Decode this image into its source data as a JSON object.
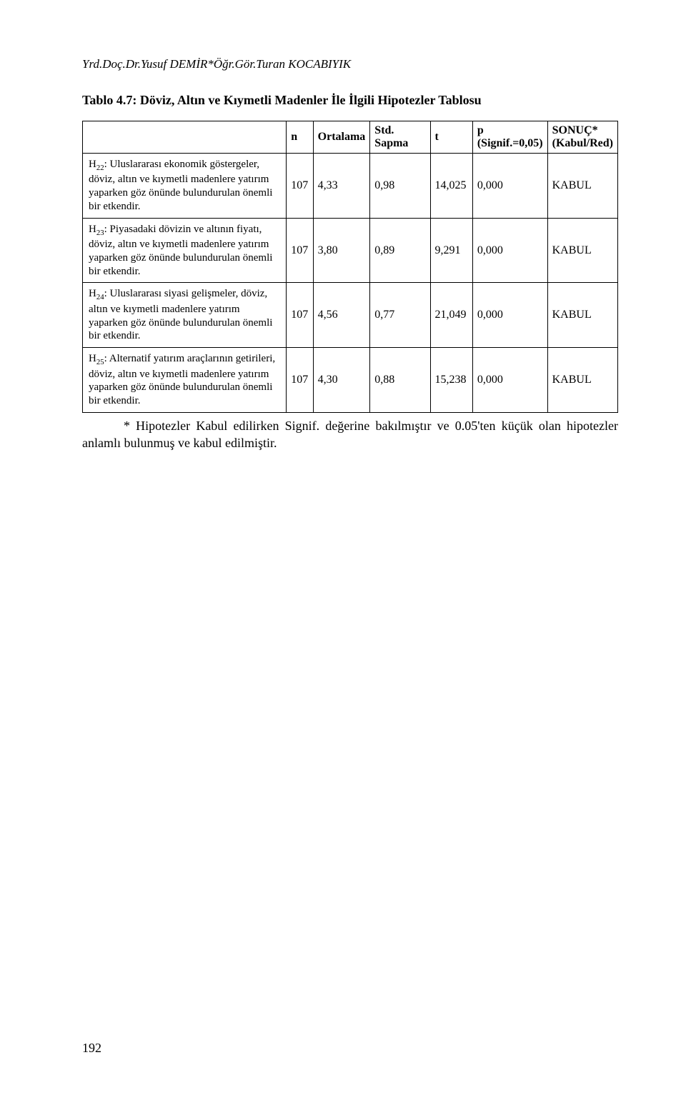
{
  "page": {
    "running_header": "Yrd.Doç.Dr.Yusuf DEMİR*Öğr.Gör.Turan KOCABIYIK",
    "table_caption": "Tablo 4.7: Döviz, Altın ve Kıymetli Madenler İle İlgili Hipotezler Tablosu",
    "page_number": "192"
  },
  "table": {
    "headers": {
      "blank": "",
      "n": "n",
      "mean": "Ortalama",
      "sd": "Std. Sapma",
      "t": "t",
      "p": "p (Signif.=0,05)",
      "result": "SONUÇ* (Kabul/Red)"
    },
    "rows": [
      {
        "desc": "H₂₂: Uluslararası ekonomik göstergeler, döviz, altın ve kıymetli madenlere yatırım yaparken göz önünde bulundurulan önemli bir etkendir.",
        "n": "107",
        "mean": "4,33",
        "sd": "0,98",
        "t": "14,025",
        "p": "0,000",
        "result": "KABUL"
      },
      {
        "desc": "H₂₃: Piyasadaki dövizin ve altının fiyatı, döviz, altın ve kıymetli madenlere yatırım yaparken göz önünde bulundurulan önemli bir etkendir.",
        "n": "107",
        "mean": "3,80",
        "sd": "0,89",
        "t": "9,291",
        "p": "0,000",
        "result": "KABUL"
      },
      {
        "desc": "H₂₄: Uluslararası siyasi gelişmeler, döviz, altın ve kıymetli madenlere yatırım yaparken göz önünde bulundurulan önemli bir etkendir.",
        "n": "107",
        "mean": "4,56",
        "sd": "0,77",
        "t": "21,049",
        "p": "0,000",
        "result": "KABUL"
      },
      {
        "desc": "H₂₅: Alternatif yatırım araçlarının getirileri, döviz, altın ve kıymetli madenlere yatırım yaparken göz önünde bulundurulan önemli bir etkendir.",
        "n": "107",
        "mean": "4,30",
        "sd": "0,88",
        "t": "15,238",
        "p": "0,000",
        "result": "KABUL"
      }
    ]
  },
  "footnote": "* Hipotezler Kabul edilirken Signif. değerine bakılmıştır ve 0.05'ten küçük olan hipotezler anlamlı bulunmuş ve kabul edilmiştir.",
  "style": {
    "col_widths": [
      "44%",
      "5%",
      "10%",
      "12%",
      "8%",
      "10%",
      "11%"
    ]
  }
}
